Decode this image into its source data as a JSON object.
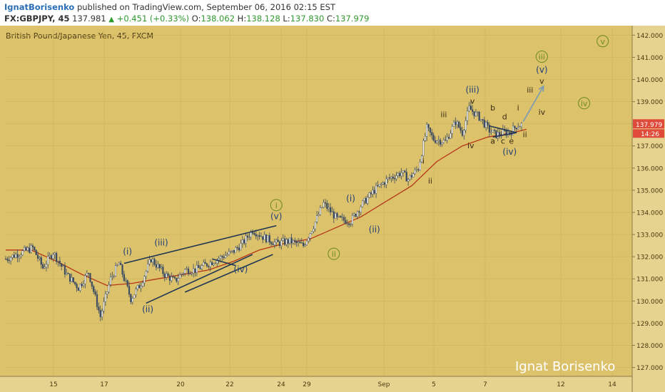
{
  "header": {
    "author": "IgnatBorisenko",
    "published": "published on TradingView.com, September 06, 2016 02:15 EST",
    "symbol": "FX:GBPJPY, 45",
    "last": "137.981",
    "change": "+0.451 (+0.33%)",
    "open_label": "O:",
    "open": "138.062",
    "high_label": "H:",
    "high": "138.128",
    "low_label": "L:",
    "low": "137.830",
    "close_label": "C:",
    "close": "137.979"
  },
  "colors": {
    "background": "#dcc26a",
    "candle": "#3a4a62",
    "moving_average": "#b5361a",
    "trendline": "#1f3654",
    "wave_blue": "#1f3f7a",
    "wave_dark": "#3a2a12",
    "wave_green": "#6a8a1e",
    "projection_arrow": "#7a9ab8",
    "price_label_bg": "#e04a3a"
  },
  "chart_data": {
    "type": "candlestick",
    "title": "British Pound/Japanese Yen, 45, FXCM",
    "watermark": "Ignat Borisenko",
    "x_tick_labels": [
      "15",
      "17",
      "20",
      "22",
      "24",
      "29",
      "Sep",
      "5",
      "7",
      "12",
      "14"
    ],
    "y_tick_labels": [
      "127.000",
      "128.000",
      "129.000",
      "130.000",
      "131.000",
      "132.000",
      "133.000",
      "134.000",
      "135.000",
      "136.000",
      "137.000",
      "138.000",
      "139.000",
      "140.000",
      "141.000",
      "142.000"
    ],
    "ylim": [
      126.6,
      142.3
    ],
    "last_price_label": "137.979",
    "countdown_label": "14:26",
    "price_path": [
      [
        0,
        131.9
      ],
      [
        1.6,
        132.4
      ],
      [
        2.2,
        131.5
      ],
      [
        2.8,
        132.2
      ],
      [
        3.6,
        131.2
      ],
      [
        4.3,
        130.6
      ],
      [
        4.9,
        131.3
      ],
      [
        5.6,
        129.3
      ],
      [
        6.2,
        131.0
      ],
      [
        6.7,
        131.7
      ],
      [
        7.4,
        130.1
      ],
      [
        8.0,
        130.8
      ],
      [
        8.6,
        131.9
      ],
      [
        9.4,
        131.2
      ],
      [
        10.0,
        130.9
      ],
      [
        10.6,
        131.4
      ],
      [
        11.2,
        131.4
      ],
      [
        12.0,
        131.7
      ],
      [
        12.8,
        132.0
      ],
      [
        13.4,
        132.2
      ],
      [
        14.0,
        132.6
      ],
      [
        14.6,
        133.2
      ],
      [
        15.2,
        132.9
      ],
      [
        16.0,
        132.6
      ],
      [
        16.8,
        132.7
      ],
      [
        17.6,
        132.5
      ],
      [
        18.2,
        133.4
      ],
      [
        18.8,
        134.4
      ],
      [
        19.6,
        133.7
      ],
      [
        20.4,
        133.6
      ],
      [
        21.0,
        134.3
      ],
      [
        21.8,
        135.0
      ],
      [
        22.6,
        135.5
      ],
      [
        23.4,
        135.8
      ],
      [
        23.8,
        135.5
      ],
      [
        24.4,
        136.0
      ],
      [
        24.9,
        137.8
      ],
      [
        25.3,
        137.3
      ],
      [
        26.0,
        137.2
      ],
      [
        26.6,
        138.1
      ],
      [
        27.0,
        137.6
      ],
      [
        27.4,
        138.7
      ],
      [
        28.0,
        138.3
      ],
      [
        28.6,
        137.7
      ],
      [
        29.0,
        137.5
      ],
      [
        29.4,
        137.6
      ],
      [
        29.8,
        137.6
      ],
      [
        30.2,
        137.9
      ],
      [
        30.6,
        137.98
      ]
    ],
    "moving_average": [
      [
        0,
        132.3
      ],
      [
        1.5,
        132.3
      ],
      [
        3,
        131.8
      ],
      [
        4.5,
        131.2
      ],
      [
        6,
        130.7
      ],
      [
        7.5,
        130.8
      ],
      [
        9,
        131.0
      ],
      [
        10.5,
        131.2
      ],
      [
        12,
        131.4
      ],
      [
        13.5,
        131.8
      ],
      [
        15,
        132.3
      ],
      [
        16.5,
        132.6
      ],
      [
        18,
        132.8
      ],
      [
        19.5,
        133.3
      ],
      [
        21,
        133.8
      ],
      [
        22.5,
        134.5
      ],
      [
        24,
        135.2
      ],
      [
        25.5,
        136.3
      ],
      [
        27,
        137.0
      ],
      [
        28.5,
        137.4
      ],
      [
        30,
        137.6
      ],
      [
        30.8,
        137.75
      ]
    ],
    "trendlines": [
      [
        [
          7.0,
          131.7
        ],
        [
          16.0,
          133.4
        ]
      ],
      [
        [
          8.3,
          129.9
        ],
        [
          14.6,
          132.1
        ]
      ],
      [
        [
          10.6,
          130.4
        ],
        [
          15.8,
          132.1
        ]
      ],
      [
        [
          12.2,
          131.9
        ],
        [
          13.6,
          131.6
        ]
      ],
      [
        [
          28.6,
          137.9
        ],
        [
          30.2,
          137.6
        ]
      ],
      [
        [
          28.8,
          137.4
        ],
        [
          30.2,
          137.6
        ]
      ]
    ],
    "projection_arrow": [
      [
        30.6,
        138.1
      ],
      [
        31.8,
        139.7
      ]
    ],
    "wave_labels": [
      {
        "text": "(i)",
        "x": 7.2,
        "y": 132.1,
        "style": "blue"
      },
      {
        "text": "(ii)",
        "x": 8.4,
        "y": 129.5,
        "style": "blue"
      },
      {
        "text": "(iii)",
        "x": 9.2,
        "y": 132.5,
        "style": "blue"
      },
      {
        "text": "(iv)",
        "x": 13.9,
        "y": 131.3,
        "style": "blue"
      },
      {
        "text": "(v)",
        "x": 16.0,
        "y": 133.7,
        "style": "blue"
      },
      {
        "text": "i",
        "x": 16.0,
        "y": 134.2,
        "style": "green"
      },
      {
        "text": "ii",
        "x": 19.4,
        "y": 132.0,
        "style": "green"
      },
      {
        "text": "(i)",
        "x": 20.4,
        "y": 134.5,
        "style": "blue"
      },
      {
        "text": "(ii)",
        "x": 21.8,
        "y": 133.1,
        "style": "blue"
      },
      {
        "text": "i",
        "x": 24.7,
        "y": 136.2,
        "style": "dark"
      },
      {
        "text": "ii",
        "x": 25.1,
        "y": 135.3,
        "style": "dark"
      },
      {
        "text": "iii",
        "x": 25.9,
        "y": 138.3,
        "style": "dark"
      },
      {
        "text": "iv",
        "x": 27.5,
        "y": 136.9,
        "style": "dark"
      },
      {
        "text": "(iii)",
        "x": 27.6,
        "y": 139.4,
        "style": "blue"
      },
      {
        "text": "v",
        "x": 27.6,
        "y": 138.9,
        "style": "dark"
      },
      {
        "text": "b",
        "x": 28.8,
        "y": 138.6,
        "style": "dark"
      },
      {
        "text": "d",
        "x": 29.5,
        "y": 138.2,
        "style": "dark"
      },
      {
        "text": "a",
        "x": 28.8,
        "y": 137.1,
        "style": "dark"
      },
      {
        "text": "c",
        "x": 29.4,
        "y": 137.1,
        "style": "dark"
      },
      {
        "text": "e",
        "x": 29.9,
        "y": 137.1,
        "style": "dark"
      },
      {
        "text": "(iv)",
        "x": 29.8,
        "y": 136.6,
        "style": "blue"
      },
      {
        "text": "i",
        "x": 30.3,
        "y": 138.6,
        "style": "dark"
      },
      {
        "text": "ii",
        "x": 30.7,
        "y": 137.4,
        "style": "dark"
      },
      {
        "text": "iii",
        "x": 31.0,
        "y": 139.4,
        "style": "dark"
      },
      {
        "text": "iv",
        "x": 31.7,
        "y": 138.4,
        "style": "dark"
      },
      {
        "text": "(v)",
        "x": 31.7,
        "y": 140.3,
        "style": "blue"
      },
      {
        "text": "v",
        "x": 31.7,
        "y": 139.8,
        "style": "dark"
      },
      {
        "text": "iii",
        "x": 31.7,
        "y": 140.9,
        "style": "green"
      },
      {
        "text": "iv",
        "x": 34.2,
        "y": 138.8,
        "style": "green"
      },
      {
        "text": "v",
        "x": 35.3,
        "y": 141.6,
        "style": "green"
      }
    ]
  }
}
